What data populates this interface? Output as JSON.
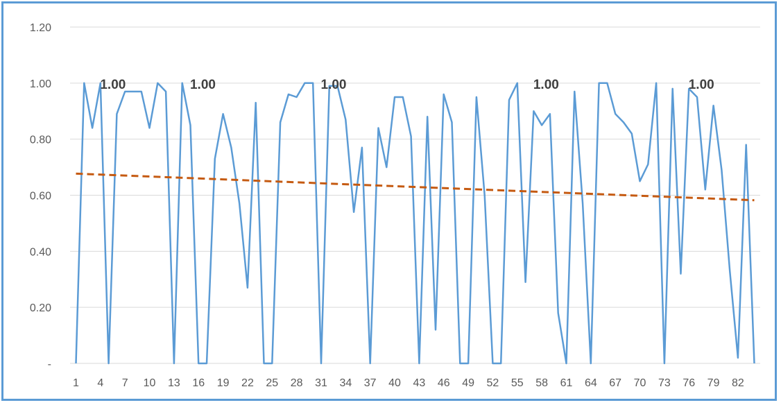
{
  "chart_data": {
    "type": "line",
    "title": "",
    "xlabel": "",
    "ylabel": "",
    "ylim": [
      0,
      1.2
    ],
    "yticks": [
      "-",
      "0.20",
      "0.40",
      "0.60",
      "0.80",
      "1.00",
      "1.20"
    ],
    "ytick_values": [
      0,
      0.2,
      0.4,
      0.6,
      0.8,
      1.0,
      1.2
    ],
    "xtick_labels": [
      "1",
      "4",
      "7",
      "10",
      "13",
      "16",
      "19",
      "22",
      "25",
      "28",
      "31",
      "34",
      "37",
      "40",
      "43",
      "46",
      "49",
      "52",
      "55",
      "58",
      "61",
      "64",
      "67",
      "70",
      "73",
      "76",
      "79",
      "82"
    ],
    "grid": "horizontal",
    "legend": "none",
    "colors": {
      "series": "#5b9bd5",
      "trend": "#c55a11",
      "grid": "#d9d9d9",
      "frame": "#5b9bd5"
    },
    "series": [
      {
        "values": [
          0,
          1.0,
          0.84,
          1.0,
          0,
          0.89,
          0.97,
          0.97,
          0.97,
          0.84,
          1.0,
          0.97,
          0,
          1.0,
          0.85,
          0,
          0,
          0.73,
          0.89,
          0.77,
          0.57,
          0.27,
          0.93,
          0,
          0,
          0.86,
          0.96,
          0.95,
          1.0,
          1.0,
          0,
          0.99,
          0.99,
          0.87,
          0.54,
          0.77,
          0,
          0.84,
          0.7,
          0.95,
          0.95,
          0.81,
          0,
          0.88,
          0.12,
          0.96,
          0.86,
          0,
          0,
          0.95,
          0.6,
          0,
          0,
          0.94,
          1.0,
          0.29,
          0.9,
          0.85,
          0.89,
          0.18,
          0,
          0.97,
          0.57,
          0,
          1.0,
          1.0,
          0.89,
          0.86,
          0.82,
          0.65,
          0.71,
          1.0,
          0,
          0.98,
          0.32,
          0.98,
          0.95,
          0.62,
          0.92,
          0.69,
          0.33,
          0.02,
          0.78,
          0
        ]
      }
    ],
    "trendline": {
      "type": "linear",
      "start": 0.677,
      "end": 0.582
    },
    "data_labels": [
      {
        "x": 4,
        "text": "1.00"
      },
      {
        "x": 15,
        "text": "1.00"
      },
      {
        "x": 31,
        "text": "1.00"
      },
      {
        "x": 57,
        "text": "1.00"
      },
      {
        "x": 76,
        "text": "1.00"
      }
    ]
  }
}
